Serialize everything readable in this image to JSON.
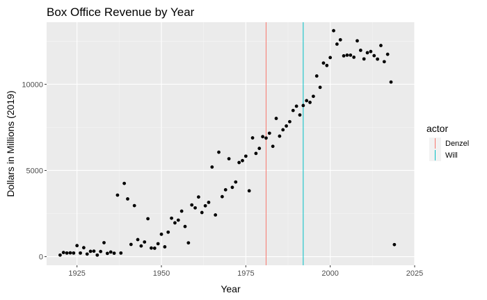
{
  "chart_data": {
    "type": "scatter",
    "title": "Box Office Revenue by Year",
    "xlabel": "Year",
    "ylabel": "Dollars in Millions (2019)",
    "xlim": [
      1916,
      2025
    ],
    "ylim": [
      -500,
      13600
    ],
    "x_ticks": [
      1925,
      1950,
      1975,
      2000,
      2025
    ],
    "x_tick_labels": [
      "1925",
      "1950",
      "1975",
      "2000",
      "2025"
    ],
    "y_ticks": [
      0,
      5000,
      10000
    ],
    "y_tick_labels": [
      "0",
      "5000",
      "10000"
    ],
    "grid": true,
    "point_color": "#000000",
    "points": [
      [
        1920,
        90
      ],
      [
        1921,
        240
      ],
      [
        1922,
        210
      ],
      [
        1923,
        220
      ],
      [
        1924,
        210
      ],
      [
        1925,
        640
      ],
      [
        1926,
        210
      ],
      [
        1927,
        520
      ],
      [
        1928,
        150
      ],
      [
        1929,
        310
      ],
      [
        1930,
        320
      ],
      [
        1931,
        90
      ],
      [
        1932,
        300
      ],
      [
        1933,
        810
      ],
      [
        1934,
        190
      ],
      [
        1935,
        270
      ],
      [
        1936,
        200
      ],
      [
        1937,
        3570
      ],
      [
        1938,
        210
      ],
      [
        1939,
        4250
      ],
      [
        1940,
        3350
      ],
      [
        1941,
        710
      ],
      [
        1942,
        2960
      ],
      [
        1943,
        990
      ],
      [
        1944,
        620
      ],
      [
        1945,
        850
      ],
      [
        1946,
        2200
      ],
      [
        1947,
        500
      ],
      [
        1948,
        490
      ],
      [
        1949,
        750
      ],
      [
        1950,
        1300
      ],
      [
        1951,
        570
      ],
      [
        1952,
        1420
      ],
      [
        1953,
        2230
      ],
      [
        1954,
        1960
      ],
      [
        1955,
        2120
      ],
      [
        1956,
        2640
      ],
      [
        1957,
        1750
      ],
      [
        1958,
        800
      ],
      [
        1959,
        3000
      ],
      [
        1960,
        2830
      ],
      [
        1961,
        3460
      ],
      [
        1962,
        2560
      ],
      [
        1963,
        2950
      ],
      [
        1964,
        3150
      ],
      [
        1965,
        5200
      ],
      [
        1966,
        2420
      ],
      [
        1967,
        6060
      ],
      [
        1968,
        3480
      ],
      [
        1969,
        3880
      ],
      [
        1970,
        5680
      ],
      [
        1971,
        4020
      ],
      [
        1972,
        4330
      ],
      [
        1973,
        5460
      ],
      [
        1974,
        5570
      ],
      [
        1975,
        5830
      ],
      [
        1976,
        3820
      ],
      [
        1977,
        6890
      ],
      [
        1978,
        5990
      ],
      [
        1979,
        6280
      ],
      [
        1980,
        6960
      ],
      [
        1981,
        6880
      ],
      [
        1982,
        7160
      ],
      [
        1983,
        6400
      ],
      [
        1984,
        8020
      ],
      [
        1985,
        6990
      ],
      [
        1986,
        7360
      ],
      [
        1987,
        7580
      ],
      [
        1988,
        7830
      ],
      [
        1989,
        8480
      ],
      [
        1990,
        8730
      ],
      [
        1991,
        8220
      ],
      [
        1992,
        8770
      ],
      [
        1993,
        9050
      ],
      [
        1994,
        8950
      ],
      [
        1995,
        9300
      ],
      [
        1996,
        10480
      ],
      [
        1997,
        9820
      ],
      [
        1998,
        11230
      ],
      [
        1999,
        11090
      ],
      [
        2000,
        11550
      ],
      [
        2001,
        13110
      ],
      [
        2002,
        12330
      ],
      [
        2003,
        12580
      ],
      [
        2004,
        11650
      ],
      [
        2005,
        11690
      ],
      [
        2006,
        11690
      ],
      [
        2007,
        11570
      ],
      [
        2008,
        12520
      ],
      [
        2009,
        11970
      ],
      [
        2010,
        11470
      ],
      [
        2011,
        11830
      ],
      [
        2012,
        11900
      ],
      [
        2013,
        11660
      ],
      [
        2014,
        11460
      ],
      [
        2015,
        12250
      ],
      [
        2016,
        11310
      ],
      [
        2017,
        11740
      ],
      [
        2018,
        10130
      ],
      [
        2019,
        700
      ]
    ],
    "vlines": [
      {
        "x": 1981,
        "color": "#f8766d"
      },
      {
        "x": 1992,
        "color": "#00bfc4"
      }
    ],
    "legend": {
      "title": "actor",
      "placement": "right",
      "entries": [
        {
          "label": "Denzel",
          "color": "#f8766d"
        },
        {
          "label": "Will",
          "color": "#00bfc4"
        }
      ]
    }
  }
}
